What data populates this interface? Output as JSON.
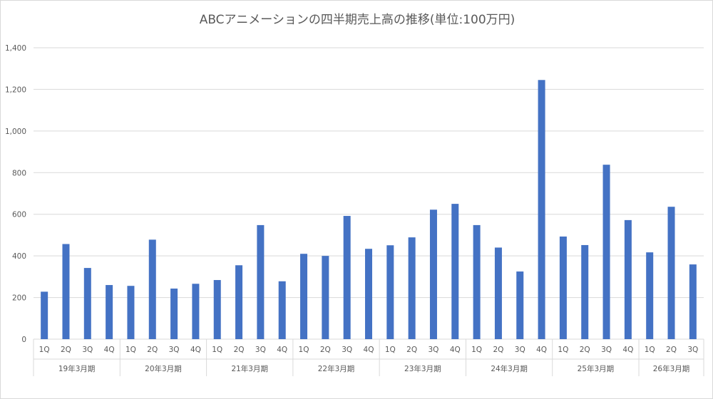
{
  "chart_data": {
    "type": "bar",
    "title": "ABCアニメーションの四半期売上高の推移(単位:100万円)",
    "xlabel": "",
    "ylabel": "",
    "ylim": [
      0,
      1400
    ],
    "yticks": [
      "0",
      "200",
      "400",
      "600",
      "800",
      "1,000",
      "1,200",
      "1,400"
    ],
    "ytick_values": [
      0,
      200,
      400,
      600,
      800,
      1000,
      1200,
      1400
    ],
    "grid": true,
    "legend": "none",
    "bar_color": "#4472c4",
    "groups": [
      {
        "label": "19年3月期",
        "quarters": [
          "1Q",
          "2Q",
          "3Q",
          "4Q"
        ],
        "values": [
          228,
          457,
          342,
          260
        ]
      },
      {
        "label": "20年3月期",
        "quarters": [
          "1Q",
          "2Q",
          "3Q",
          "4Q"
        ],
        "values": [
          256,
          478,
          243,
          266
        ]
      },
      {
        "label": "21年3月期",
        "quarters": [
          "1Q",
          "2Q",
          "3Q",
          "4Q"
        ],
        "values": [
          284,
          355,
          548,
          278
        ]
      },
      {
        "label": "22年3月期",
        "quarters": [
          "1Q",
          "2Q",
          "3Q",
          "4Q"
        ],
        "values": [
          410,
          400,
          592,
          434
        ]
      },
      {
        "label": "23年3月期",
        "quarters": [
          "1Q",
          "2Q",
          "3Q",
          "4Q"
        ],
        "values": [
          451,
          489,
          622,
          650
        ]
      },
      {
        "label": "24年3月期",
        "quarters": [
          "1Q",
          "2Q",
          "3Q",
          "4Q"
        ],
        "values": [
          548,
          440,
          325,
          1245
        ]
      },
      {
        "label": "25年3月期",
        "quarters": [
          "1Q",
          "2Q",
          "3Q",
          "4Q"
        ],
        "values": [
          493,
          452,
          838,
          572
        ]
      },
      {
        "label": "26年3月期",
        "quarters": [
          "1Q",
          "2Q",
          "3Q"
        ],
        "values": [
          417,
          636,
          359
        ]
      }
    ]
  }
}
